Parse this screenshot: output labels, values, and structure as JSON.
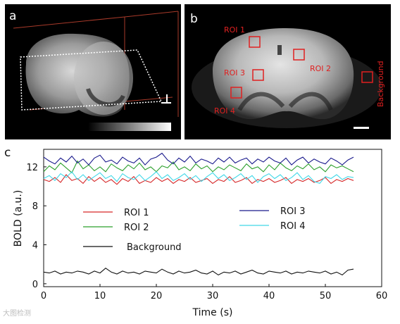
{
  "panels": {
    "a": {
      "label": "a",
      "colorbar_ticks": [
        "",
        "",
        ""
      ]
    },
    "b": {
      "label": "b",
      "rois": [
        {
          "name": "ROI 1"
        },
        {
          "name": "ROI 2"
        },
        {
          "name": "ROI 3"
        },
        {
          "name": "ROI 4"
        },
        {
          "name": "Background"
        }
      ]
    },
    "c": {
      "label": "c"
    }
  },
  "chart_data": {
    "type": "line",
    "xlabel": "Time (s)",
    "ylabel": "BOLD (a.u.)",
    "xlim": [
      0,
      60
    ],
    "ylim": [
      -0.3,
      13.8
    ],
    "xticks": [
      0,
      10,
      20,
      30,
      40,
      50,
      60
    ],
    "yticks": [
      0,
      4,
      8,
      12
    ],
    "x": [
      0,
      1,
      2,
      3,
      4,
      5,
      6,
      7,
      8,
      9,
      10,
      11,
      12,
      13,
      14,
      15,
      16,
      17,
      18,
      19,
      20,
      21,
      22,
      23,
      24,
      25,
      26,
      27,
      28,
      29,
      30,
      31,
      32,
      33,
      34,
      35,
      36,
      37,
      38,
      39,
      40,
      41,
      42,
      43,
      44,
      45,
      46,
      47,
      48,
      49,
      50,
      51,
      52,
      53,
      54,
      55
    ],
    "series": [
      {
        "name": "ROI 1",
        "color": "#d62728",
        "values": [
          10.7,
          10.5,
          10.9,
          10.4,
          11.2,
          10.6,
          10.8,
          10.3,
          11.0,
          10.5,
          10.9,
          10.4,
          10.7,
          10.2,
          10.8,
          10.5,
          11.0,
          10.3,
          10.6,
          10.4,
          10.9,
          10.5,
          10.8,
          10.3,
          10.7,
          10.5,
          10.9,
          10.4,
          10.6,
          10.8,
          10.3,
          10.7,
          10.5,
          11.0,
          10.4,
          10.6,
          10.9,
          10.3,
          10.7,
          10.5,
          10.8,
          10.4,
          10.6,
          10.9,
          10.3,
          10.7,
          10.5,
          10.8,
          10.4,
          10.6,
          10.9,
          10.3,
          10.7,
          10.5,
          10.8,
          10.6
        ]
      },
      {
        "name": "ROI 2",
        "color": "#2ca02c",
        "values": [
          11.5,
          12.1,
          11.7,
          12.4,
          11.9,
          11.4,
          12.6,
          11.8,
          12.2,
          11.6,
          12.0,
          11.5,
          12.3,
          11.9,
          11.6,
          12.2,
          11.8,
          12.4,
          11.7,
          12.0,
          11.5,
          12.1,
          11.9,
          12.5,
          11.7,
          12.0,
          11.6,
          12.3,
          11.8,
          12.1,
          11.5,
          12.0,
          11.7,
          12.2,
          11.9,
          11.6,
          12.3,
          11.8,
          12.0,
          11.5,
          12.2,
          11.7,
          12.4,
          11.9,
          11.6,
          12.1,
          11.8,
          12.3,
          11.7,
          12.0,
          11.5,
          12.2,
          11.9,
          12.1,
          11.8,
          11.5
        ]
      },
      {
        "name": "ROI 3",
        "color": "#1a1a8c",
        "values": [
          13.0,
          12.6,
          12.3,
          12.9,
          12.5,
          13.1,
          12.4,
          12.8,
          12.2,
          12.9,
          13.2,
          12.5,
          12.7,
          12.3,
          13.0,
          12.6,
          12.4,
          12.9,
          12.2,
          12.8,
          13.0,
          13.4,
          12.7,
          12.3,
          12.9,
          12.5,
          13.1,
          12.4,
          12.8,
          12.6,
          12.3,
          12.9,
          12.5,
          13.0,
          12.4,
          12.7,
          12.9,
          12.3,
          12.8,
          12.5,
          13.0,
          12.6,
          12.4,
          12.9,
          12.2,
          12.7,
          13.0,
          12.4,
          12.8,
          12.5,
          12.3,
          12.9,
          12.6,
          12.2,
          12.7,
          13.0
        ]
      },
      {
        "name": "ROI 4",
        "color": "#40d8e8",
        "values": [
          10.8,
          11.1,
          10.6,
          11.3,
          10.9,
          11.5,
          10.7,
          11.2,
          10.6,
          11.0,
          11.4,
          10.8,
          11.1,
          10.5,
          11.3,
          10.9,
          10.7,
          11.2,
          10.6,
          11.0,
          11.5,
          10.8,
          11.2,
          10.6,
          10.9,
          11.3,
          10.7,
          11.1,
          10.5,
          11.0,
          11.4,
          10.8,
          11.2,
          10.6,
          10.9,
          11.3,
          10.7,
          11.1,
          10.4,
          11.0,
          11.3,
          10.8,
          11.2,
          10.6,
          10.9,
          11.4,
          10.7,
          11.1,
          10.5,
          10.3,
          11.0,
          10.8,
          11.2,
          10.7,
          11.0,
          10.9
        ]
      },
      {
        "name": "Background",
        "color": "#111111",
        "values": [
          1.2,
          1.1,
          1.3,
          1.0,
          1.2,
          1.1,
          1.3,
          1.2,
          1.0,
          1.3,
          1.1,
          1.6,
          1.2,
          1.0,
          1.3,
          1.1,
          1.2,
          1.0,
          1.3,
          1.2,
          1.1,
          1.5,
          1.2,
          1.0,
          1.3,
          1.1,
          1.2,
          1.4,
          1.1,
          1.0,
          1.3,
          0.9,
          1.2,
          1.1,
          1.3,
          1.0,
          1.2,
          1.4,
          1.1,
          1.0,
          1.3,
          1.2,
          1.1,
          1.3,
          1.0,
          1.2,
          1.1,
          1.3,
          1.2,
          1.1,
          1.3,
          1.0,
          1.2,
          0.9,
          1.4,
          1.5
        ]
      }
    ],
    "legend": {
      "placement": "inside-center",
      "columns": 2
    }
  },
  "watermark": "大图检测"
}
